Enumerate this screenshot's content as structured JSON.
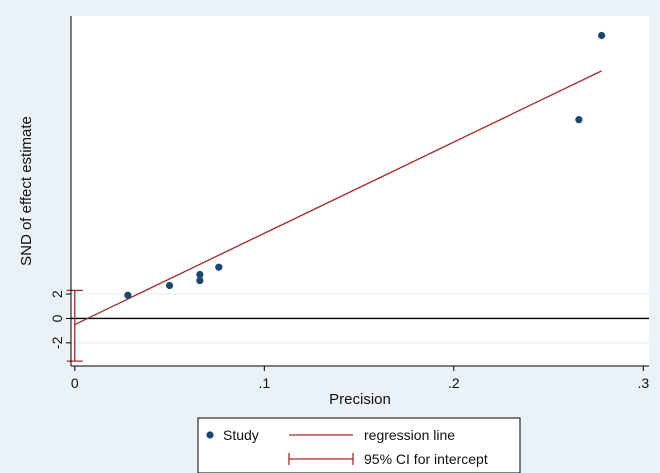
{
  "chart_data": {
    "type": "scatter",
    "xlabel": "Precision",
    "ylabel": "SND of effect estimate",
    "xlim": [
      -0.002,
      0.303
    ],
    "ylim": [
      -3.9,
      24.8
    ],
    "x_ticks": [
      {
        "value": 0,
        "label": "0"
      },
      {
        "value": 0.1,
        "label": ".1"
      },
      {
        "value": 0.2,
        "label": ".2"
      },
      {
        "value": 0.3,
        "label": ".3"
      }
    ],
    "y_ticks": [
      {
        "value": -2,
        "label": "-2"
      },
      {
        "value": 0,
        "label": "0"
      },
      {
        "value": 2,
        "label": "2"
      }
    ],
    "points": [
      {
        "x": 0.028,
        "y": 1.9
      },
      {
        "x": 0.05,
        "y": 2.7
      },
      {
        "x": 0.066,
        "y": 3.1
      },
      {
        "x": 0.066,
        "y": 3.6
      },
      {
        "x": 0.076,
        "y": 4.2
      },
      {
        "x": 0.266,
        "y": 16.3
      },
      {
        "x": 0.278,
        "y": 23.2
      }
    ],
    "regression_line": {
      "x0": 0.0,
      "y0": -0.5,
      "x1": 0.278,
      "y1": 20.3
    },
    "ci_intercept": {
      "x": 0.0,
      "low": -3.5,
      "high": 2.3
    },
    "reference_line_y": 0,
    "grid_lines_y": [
      -2,
      2
    ],
    "legend": {
      "items": [
        {
          "label": "Study",
          "kind": "marker"
        },
        {
          "label": "regression line",
          "kind": "line"
        },
        {
          "label": "95% CI for intercept",
          "kind": "ci"
        }
      ],
      "position": "bottom-center"
    },
    "colors": {
      "background": "#eaf1f7",
      "plot_background": "#ffffff",
      "points": "#1a476f",
      "regression": "#a52a2a",
      "ci": "#a52a2a",
      "grid": "#e4ecf2",
      "axis": "#000000"
    }
  }
}
